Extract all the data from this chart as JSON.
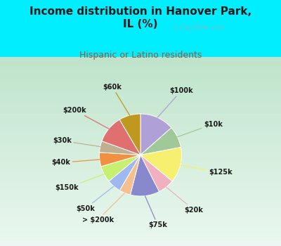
{
  "title": "Income distribution in Hanover Park,\nIL (%)",
  "subtitle": "Hispanic or Latino residents",
  "title_color": "#1a1a1a",
  "subtitle_color": "#b05030",
  "background_outer": "#00eeff",
  "background_inner_top": "#e8f5f0",
  "background_inner_bottom": "#c8e8d0",
  "watermark": "ⓘ City-Data.com",
  "labels": [
    "$100k",
    "$10k",
    "$125k",
    "$20k",
    "$75k",
    "> $200k",
    "$50k",
    "$150k",
    "$40k",
    "$30k",
    "$200k",
    "$60k"
  ],
  "values": [
    13.5,
    8.5,
    14.0,
    6.5,
    11.5,
    4.5,
    5.5,
    6.5,
    5.5,
    4.5,
    11.0,
    8.5
  ],
  "colors": [
    "#b0a0d8",
    "#a0c898",
    "#f5f070",
    "#f0b0c0",
    "#8888cc",
    "#f5c090",
    "#a0b8f0",
    "#c8f070",
    "#f09040",
    "#c0b090",
    "#e07070",
    "#c09820"
  ],
  "startangle": 90,
  "label_fontsize": 7.0,
  "label_color": "#1a1a1a"
}
